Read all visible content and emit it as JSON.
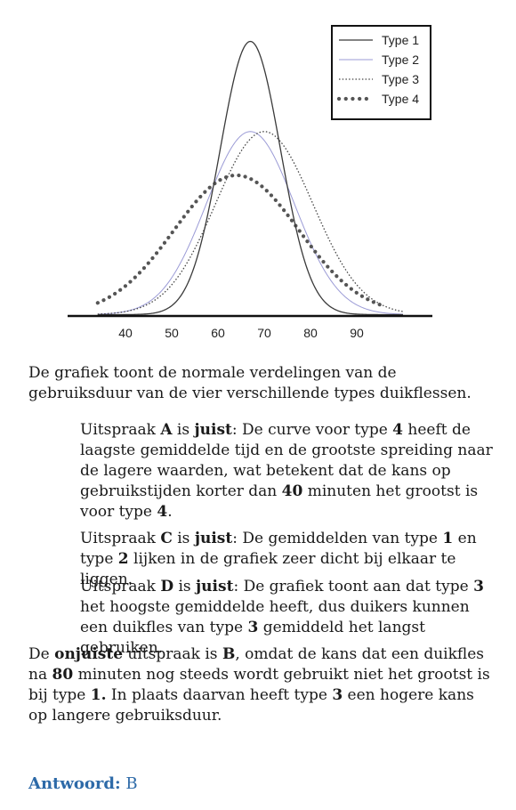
{
  "chart_data": {
    "type": "line",
    "x_ticks": [
      40,
      50,
      60,
      70,
      80,
      90
    ],
    "xlim": [
      28,
      100
    ],
    "grid": false,
    "legend_position": "top-right",
    "series": [
      {
        "name": "Type 1",
        "style": "solid",
        "color": "#3a3a3a",
        "mean": 67,
        "sd": 6.5,
        "peak": 1.0
      },
      {
        "name": "Type 2",
        "style": "thin-light",
        "color": "#9b9bd6",
        "mean": 67,
        "sd": 9.5,
        "peak": 0.67
      },
      {
        "name": "Type 3",
        "style": "dotted",
        "color": "#444444",
        "mean": 70,
        "sd": 10.5,
        "peak": 0.67
      },
      {
        "name": "Type 4",
        "style": "heavy-dots",
        "color": "#555555",
        "mean": 64,
        "sd": 13.5,
        "peak": 0.51
      }
    ]
  },
  "intro": "De grafiek toont de normale verdelingen van de gebruiksduur van de vier verschillende types duikflessen.",
  "statements": {
    "a": {
      "w1": "Uitspraak ",
      "letter": "A",
      "w2": " is ",
      "juist": "juist",
      "t1": ": De curve voor type ",
      "n1": "4",
      "t2": " heeft de laagste gemiddelde tijd en de grootste spreiding naar de lagere waarden, wat betekent dat de kans op gebruikstijden korter dan ",
      "n2": "40",
      "t3": " minuten het grootst is voor type ",
      "n3": "4",
      "t4": "."
    },
    "c": {
      "w1": "Uitspraak ",
      "letter": "C",
      "w2": " is ",
      "juist": "juist",
      "t1": ": De gemiddelden van type ",
      "n1": "1",
      "t2": " en type ",
      "n2": "2",
      "t3": " lijken in de grafiek zeer dicht bij elkaar te liggen."
    },
    "d": {
      "w1": "Uitspraak ",
      "letter": "D",
      "w2": " is ",
      "juist": "juist",
      "t1": ": De grafiek toont aan dat type ",
      "n1": "3",
      "t2": " het hoogste gemiddelde heeft, dus duikers kunnen een duikfles van type ",
      "n2": "3",
      "t3": " gemiddeld het langst gebruiken."
    }
  },
  "conclusion": {
    "t1": "De ",
    "onjuiste": "onjuiste",
    "t2": " uitspraak is ",
    "b": "B",
    "t3": ", omdat de kans dat een duikfles na ",
    "n1": "80",
    "t4": " minuten nog steeds wordt gebruikt niet het grootst is bij type ",
    "n2": "1.",
    "t5": " In plaats daarvan heeft type ",
    "n3": "3",
    "t6": " een hogere kans op langere gebruiksduur."
  },
  "answer": {
    "label": "Antwoord:",
    "value": "B"
  }
}
